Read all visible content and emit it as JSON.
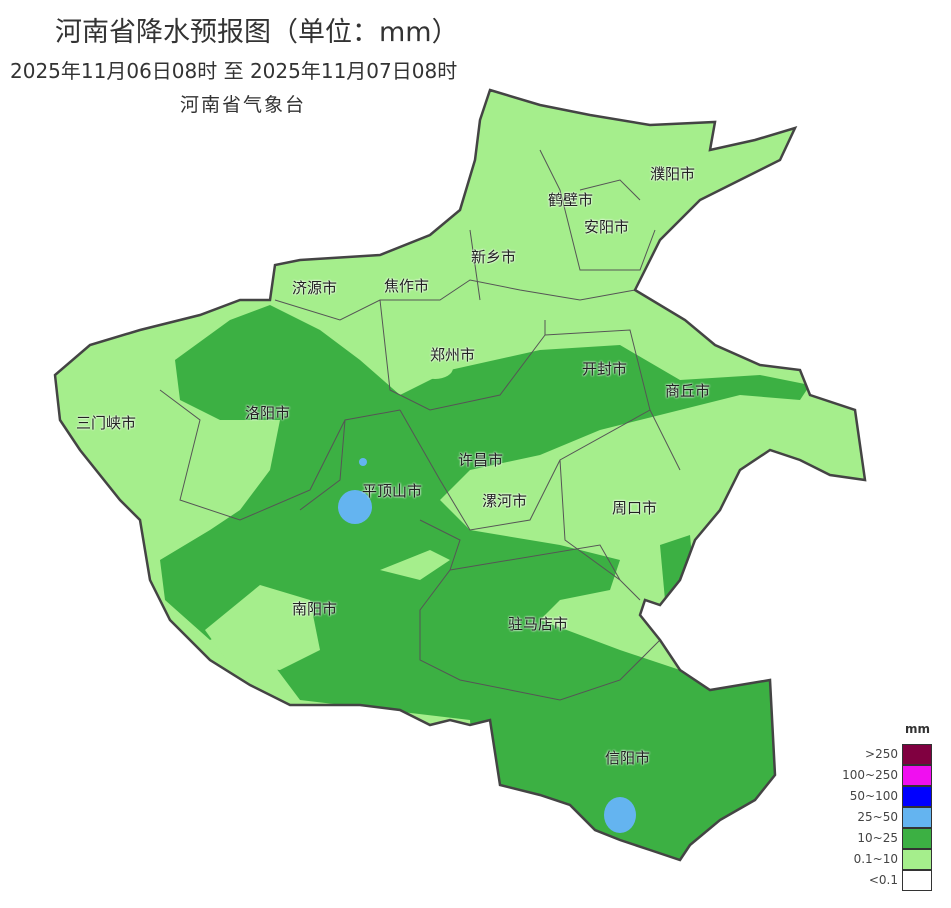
{
  "header": {
    "title": "河南省降水预报图（单位：mm）",
    "period": "2025年11月06日08时  至  2025年11月07日08时",
    "organization": "河南省气象台"
  },
  "map": {
    "colors": {
      "light_green": "#a5ee8c",
      "dark_green": "#3cb043",
      "blue_lake": "#64b4f0",
      "border": "#444444"
    },
    "cities": [
      "濮阳市",
      "鹤壁市",
      "安阳市",
      "新乡市",
      "济源市",
      "焦作市",
      "郑州市",
      "开封市",
      "商丘市",
      "三门峡市",
      "洛阳市",
      "许昌市",
      "平顶山市",
      "漯河市",
      "周口市",
      "南阳市",
      "驻马店市",
      "信阳市"
    ]
  },
  "legend": {
    "unit": "mm",
    "items": [
      {
        "label": ">250",
        "color": "#800040"
      },
      {
        "label": "100~250",
        "color": "#f00ff0"
      },
      {
        "label": "50~100",
        "color": "#0000ff"
      },
      {
        "label": "25~50",
        "color": "#64b4f0"
      },
      {
        "label": "10~25",
        "color": "#3cb043"
      },
      {
        "label": "0.1~10",
        "color": "#a5ee8c"
      },
      {
        "label": "<0.1",
        "color": "#ffffff"
      }
    ]
  }
}
